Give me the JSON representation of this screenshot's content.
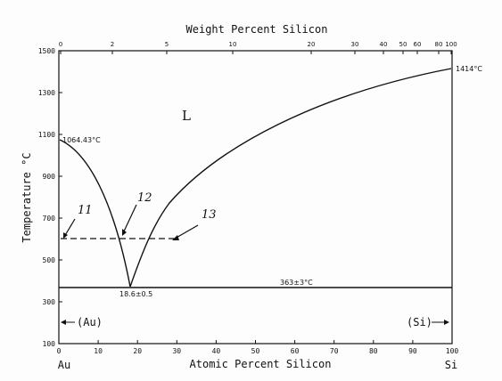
{
  "diagram": {
    "top_axis_title": "Weight Percent Silicon",
    "bottom_axis_title": "Atomic Percent Silicon",
    "y_axis_title": "Temperature °C",
    "bottom_ticks": [
      "0",
      "10",
      "20",
      "30",
      "40",
      "50",
      "60",
      "70",
      "80",
      "90",
      "100"
    ],
    "top_ticks": [
      "0",
      "2",
      "5",
      "10",
      "20",
      "30",
      "40",
      "50",
      "60",
      "80",
      "100"
    ],
    "y_ticks": [
      "100",
      "300",
      "500",
      "700",
      "900",
      "1100",
      "1300",
      "1500"
    ],
    "region_label": "L",
    "left_element": "Au",
    "right_element": "Si",
    "left_phase": "(Au)",
    "right_phase": "(Si)",
    "au_melting_point": "1064.43°C",
    "si_melting_point": "1414°C",
    "eutectic_temperature": "363±3°C",
    "eutectic_composition": "18.6±0.5",
    "hand_annotations": [
      "11",
      "12",
      "13"
    ]
  }
}
